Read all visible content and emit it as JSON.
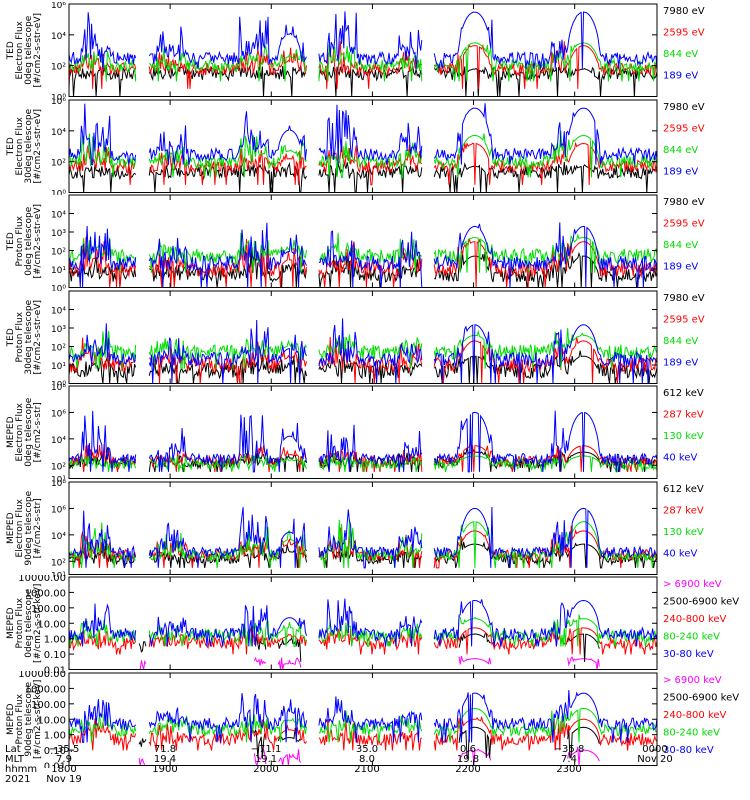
{
  "colors": {
    "blue": "#0000ff",
    "red": "#ff0000",
    "green": "#00dd00",
    "black": "#000000",
    "magenta": "#ff00ff"
  },
  "bottom_axis": {
    "row_labels": [
      "Lat",
      "MLT",
      "hhmm",
      "2021"
    ],
    "columns": [
      {
        "lat": "−35.5",
        "mlt": "7.9",
        "time": "1800",
        "date": "Nov 19"
      },
      {
        "lat": "71.8",
        "mlt": "19.4",
        "time": "1900",
        "date": ""
      },
      {
        "lat": "−71.1",
        "mlt": "19.1",
        "time": "2000",
        "date": ""
      },
      {
        "lat": "35.0",
        "mlt": "8.0",
        "time": "2100",
        "date": ""
      },
      {
        "lat": "0.6",
        "mlt": "19.8",
        "time": "2200",
        "date": ""
      },
      {
        "lat": "−35.8",
        "mlt": "7.4",
        "time": "2300",
        "date": ""
      },
      {
        "lat": "",
        "mlt": "",
        "time": "0000",
        "date": "Nov 20"
      }
    ]
  },
  "chart_data": [
    {
      "type": "line",
      "ylabel": [
        "TED",
        "Electron Flux",
        "0deg telescope",
        "[#/cm2-s-str-eV]"
      ],
      "yscale": "log",
      "ylim": [
        1,
        1000000
      ],
      "y_ticks": [
        {
          "v": 1,
          "label": "10⁰"
        },
        {
          "v": 100,
          "label": "10²"
        },
        {
          "v": 10000,
          "label": "10⁴"
        },
        {
          "v": 1000000,
          "label": "10⁶"
        }
      ],
      "series": [
        {
          "name": "7980 eV",
          "color": "black",
          "base": 30,
          "spike": 60,
          "floor": 1
        },
        {
          "name": "2595 eV",
          "color": "red",
          "base": 60,
          "spike": 2000,
          "floor": 10
        },
        {
          "name": "844 eV",
          "color": "green",
          "base": 100,
          "spike": 3000,
          "floor": 30
        },
        {
          "name": "189 eV",
          "color": "blue",
          "base": 300,
          "spike": 300000,
          "floor": 200
        }
      ]
    },
    {
      "type": "line",
      "ylabel": [
        "TED",
        "Electron Flux",
        "30deg telescope",
        "[#/cm2-s-str-eV]"
      ],
      "yscale": "log",
      "ylim": [
        1,
        1000000
      ],
      "y_ticks": [
        {
          "v": 1,
          "label": "10⁰"
        },
        {
          "v": 100,
          "label": "10²"
        },
        {
          "v": 10000,
          "label": "10⁴"
        },
        {
          "v": 1000000,
          "label": "10⁶"
        }
      ],
      "series": [
        {
          "name": "7980 eV",
          "color": "black",
          "base": 20,
          "spike": 50,
          "floor": 1
        },
        {
          "name": "2595 eV",
          "color": "red",
          "base": 50,
          "spike": 1500,
          "floor": 10
        },
        {
          "name": "844 eV",
          "color": "green",
          "base": 100,
          "spike": 5000,
          "floor": 30
        },
        {
          "name": "189 eV",
          "color": "blue",
          "base": 300,
          "spike": 300000,
          "floor": 200
        }
      ]
    },
    {
      "type": "line",
      "ylabel": [
        "TED",
        "Proton Flux",
        "0deg telescope",
        "[#/cm2-s-str-eV]"
      ],
      "yscale": "log",
      "ylim": [
        1,
        100000
      ],
      "y_ticks": [
        {
          "v": 1,
          "label": "10⁰"
        },
        {
          "v": 10,
          "label": "10¹"
        },
        {
          "v": 100,
          "label": "10²"
        },
        {
          "v": 1000,
          "label": "10³"
        },
        {
          "v": 10000,
          "label": "10⁴"
        }
      ],
      "series": [
        {
          "name": "7980 eV",
          "color": "black",
          "base": 5,
          "spike": 50,
          "floor": 1
        },
        {
          "name": "2595 eV",
          "color": "red",
          "base": 10,
          "spike": 300,
          "floor": 2
        },
        {
          "name": "844 eV",
          "color": "green",
          "base": 50,
          "spike": 500,
          "floor": 20
        },
        {
          "name": "189 eV",
          "color": "blue",
          "base": 20,
          "spike": 2000,
          "floor": 2
        }
      ]
    },
    {
      "type": "line",
      "ylabel": [
        "TED",
        "Proton Flux",
        "30deg telescope",
        "[#/cm2-s-str-eV]"
      ],
      "yscale": "log",
      "ylim": [
        1,
        100000
      ],
      "y_ticks": [
        {
          "v": 1,
          "label": "10⁰"
        },
        {
          "v": 10,
          "label": "10¹"
        },
        {
          "v": 100,
          "label": "10²"
        },
        {
          "v": 1000,
          "label": "10³"
        },
        {
          "v": 10000,
          "label": "10⁴"
        }
      ],
      "series": [
        {
          "name": "7980 eV",
          "color": "black",
          "base": 5,
          "spike": 30,
          "floor": 1
        },
        {
          "name": "2595 eV",
          "color": "red",
          "base": 10,
          "spike": 200,
          "floor": 2
        },
        {
          "name": "844 eV",
          "color": "green",
          "base": 50,
          "spike": 400,
          "floor": 20
        },
        {
          "name": "189 eV",
          "color": "blue",
          "base": 20,
          "spike": 1500,
          "floor": 2
        }
      ]
    },
    {
      "type": "line",
      "ylabel": [
        "MEPED",
        "Electron Flux",
        "0deg telescope",
        "[#/cm2-s-str]"
      ],
      "yscale": "log",
      "ylim": [
        10,
        100000000
      ],
      "y_ticks": [
        {
          "v": 10,
          "label": "10¹"
        },
        {
          "v": 100,
          "label": "10²"
        },
        {
          "v": 10000,
          "label": "10⁴"
        },
        {
          "v": 1000000,
          "label": "10⁶"
        },
        {
          "v": 100000000,
          "label": "10⁸"
        }
      ],
      "series": [
        {
          "name": "612 keV",
          "color": "black",
          "base": 150,
          "spike": 1000,
          "floor": 100
        },
        {
          "name": "287 keV",
          "color": "red",
          "base": 200,
          "spike": 3000,
          "floor": 100
        },
        {
          "name": "130 keV",
          "color": "green",
          "base": 120,
          "spike": 500,
          "floor": 100
        },
        {
          "name": "40 keV",
          "color": "blue",
          "base": 300,
          "spike": 1000000,
          "floor": 100
        }
      ]
    },
    {
      "type": "line",
      "ylabel": [
        "MEPED",
        "Electron Flux",
        "90deg telescope",
        "[#/cm2-s-str]"
      ],
      "yscale": "log",
      "ylim": [
        10,
        100000000
      ],
      "y_ticks": [
        {
          "v": 10,
          "label": "10¹"
        },
        {
          "v": 100,
          "label": "10²"
        },
        {
          "v": 10000,
          "label": "10⁴"
        },
        {
          "v": 1000000,
          "label": "10⁶"
        },
        {
          "v": 100000000,
          "label": "10⁸"
        }
      ],
      "series": [
        {
          "name": "612 keV",
          "color": "black",
          "base": 150,
          "spike": 2000,
          "floor": 100
        },
        {
          "name": "287 keV",
          "color": "red",
          "base": 300,
          "spike": 20000,
          "floor": 100
        },
        {
          "name": "130 keV",
          "color": "green",
          "base": 300,
          "spike": 100000,
          "floor": 100
        },
        {
          "name": "40 keV",
          "color": "blue",
          "base": 500,
          "spike": 1000000,
          "floor": 100
        }
      ]
    },
    {
      "type": "line",
      "ylabel": [
        "MEPED",
        "Proton Flux",
        "0deg telescope",
        "[#/cm2-s-str-keV]"
      ],
      "yscale": "log",
      "ylim": [
        0.01,
        10000
      ],
      "y_ticks": [
        {
          "v": 0.01,
          "label": "0.01"
        },
        {
          "v": 0.1,
          "label": "0.10"
        },
        {
          "v": 1,
          "label": "1.00"
        },
        {
          "v": 10,
          "label": "10.00"
        },
        {
          "v": 100,
          "label": "100.00"
        },
        {
          "v": 1000,
          "label": "1000.00"
        },
        {
          "v": 10000,
          "label": "10000.00"
        }
      ],
      "series": [
        {
          "name": "> 6900 keV",
          "color": "magenta",
          "base": 0.02,
          "spike": 0.05,
          "floor": 0.01
        },
        {
          "name": "2500-6900 keV",
          "color": "black",
          "base": 0.3,
          "spike": 2,
          "floor": 0.1
        },
        {
          "name": "240-800 keV",
          "color": "red",
          "base": 0.5,
          "spike": 5,
          "floor": 0.3
        },
        {
          "name": "80-240 keV",
          "color": "green",
          "base": 1.5,
          "spike": 20,
          "floor": 1
        },
        {
          "name": "30-80 keV",
          "color": "blue",
          "base": 2,
          "spike": 300,
          "floor": 1
        }
      ]
    },
    {
      "type": "line",
      "ylabel": [
        "MEPED",
        "Proton Flux",
        "90deg telescope",
        "[#/cm2-s-str-keV]"
      ],
      "yscale": "log",
      "ylim": [
        0.01,
        10000
      ],
      "y_ticks": [
        {
          "v": 0.01,
          "label": "0.01"
        },
        {
          "v": 0.1,
          "label": "0.10"
        },
        {
          "v": 1,
          "label": "1.00"
        },
        {
          "v": 10,
          "label": "10.00"
        },
        {
          "v": 100,
          "label": "100.00"
        },
        {
          "v": 1000,
          "label": "1000.00"
        },
        {
          "v": 10000,
          "label": "10000.00"
        }
      ],
      "series": [
        {
          "name": "> 6900 keV",
          "color": "magenta",
          "base": 0.02,
          "spike": 0.1,
          "floor": 0.01
        },
        {
          "name": "2500-6900 keV",
          "color": "black",
          "base": 0.3,
          "spike": 3,
          "floor": 0.1
        },
        {
          "name": "240-800 keV",
          "color": "red",
          "base": 0.5,
          "spike": 10,
          "floor": 0.3
        },
        {
          "name": "80-240 keV",
          "color": "green",
          "base": 2,
          "spike": 50,
          "floor": 1
        },
        {
          "name": "30-80 keV",
          "color": "blue",
          "base": 5,
          "spike": 500,
          "floor": 1
        }
      ]
    }
  ]
}
